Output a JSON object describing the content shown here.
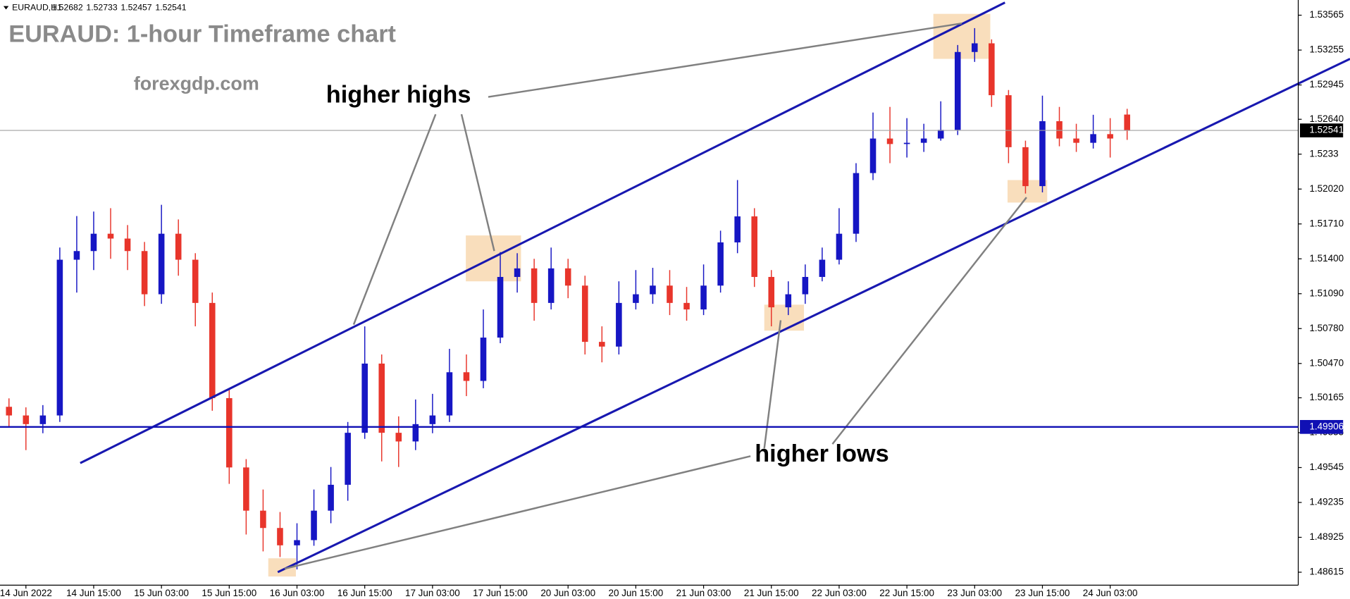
{
  "chart_data": {
    "type": "candlestick",
    "symbol": "EURAUD,H1",
    "title": "EURAUD: 1-hour Timeframe chart",
    "subtitle": "forexgdp.com",
    "annotations": [
      "higher highs",
      "higher lows"
    ],
    "up_color": "#1616c4",
    "down_color": "#e8352b",
    "series": {
      "open": [
        1.50085,
        1.50008,
        1.49931,
        1.50008,
        1.51392,
        1.51469,
        1.51623,
        1.5158,
        1.51469,
        1.51085,
        1.51623,
        1.51392,
        1.51008,
        1.50162,
        1.49546,
        1.49162,
        1.49008,
        1.48854,
        1.489,
        1.49162,
        1.49392,
        1.49854,
        1.50469,
        1.49854,
        1.49777,
        1.49931,
        1.50008,
        1.50392,
        1.50315,
        1.507,
        1.51239,
        1.51315,
        1.51008,
        1.51315,
        1.51162,
        1.50662,
        1.5062,
        1.51008,
        1.51085,
        1.51162,
        1.51008,
        1.5095,
        1.51162,
        1.51546,
        1.51777,
        1.51239,
        1.50969,
        1.51085,
        1.51239,
        1.51392,
        1.51623,
        1.52162,
        1.52469,
        1.5242,
        1.52431,
        1.52469,
        1.52546,
        1.53238,
        1.53315,
        1.52854,
        1.52392,
        1.52046,
        1.52623,
        1.52469,
        1.52431,
        1.52508,
        1.52682
      ],
      "high": [
        1.5016,
        1.5008,
        1.501,
        1.515,
        1.5178,
        1.5182,
        1.5185,
        1.517,
        1.5155,
        1.5188,
        1.5175,
        1.5145,
        1.511,
        1.5025,
        1.4962,
        1.4935,
        1.4915,
        1.4905,
        1.4935,
        1.4955,
        1.4995,
        1.508,
        1.5055,
        1.5,
        1.5015,
        1.502,
        1.506,
        1.5055,
        1.5095,
        1.5146,
        1.5145,
        1.514,
        1.515,
        1.514,
        1.5125,
        1.508,
        1.512,
        1.513,
        1.5132,
        1.513,
        1.5115,
        1.5135,
        1.5165,
        1.521,
        1.5185,
        1.513,
        1.512,
        1.5135,
        1.515,
        1.5185,
        1.5225,
        1.527,
        1.5275,
        1.5265,
        1.526,
        1.528,
        1.533,
        1.5345,
        1.5335,
        1.529,
        1.5245,
        1.5285,
        1.5275,
        1.526,
        1.5268,
        1.5265,
        1.52733
      ],
      "low": [
        1.499,
        1.497,
        1.4985,
        1.4995,
        1.511,
        1.513,
        1.514,
        1.513,
        1.5098,
        1.51,
        1.5125,
        1.508,
        1.5005,
        1.494,
        1.4895,
        1.488,
        1.4875,
        1.4864,
        1.4885,
        1.4905,
        1.4925,
        1.498,
        1.496,
        1.4955,
        1.497,
        1.4985,
        1.4995,
        1.5018,
        1.5025,
        1.5065,
        1.511,
        1.5085,
        1.5095,
        1.5105,
        1.5055,
        1.5048,
        1.5055,
        1.5095,
        1.51,
        1.509,
        1.5085,
        1.509,
        1.511,
        1.5145,
        1.5115,
        1.508,
        1.509,
        1.51,
        1.512,
        1.5135,
        1.5155,
        1.521,
        1.5225,
        1.523,
        1.5235,
        1.5245,
        1.525,
        1.5315,
        1.5275,
        1.5225,
        1.5198,
        1.5199,
        1.524,
        1.5235,
        1.5238,
        1.523,
        1.52457
      ],
      "close": [
        1.50008,
        1.49931,
        1.50008,
        1.51392,
        1.51469,
        1.51623,
        1.5158,
        1.51469,
        1.51085,
        1.51623,
        1.51392,
        1.51008,
        1.50162,
        1.49546,
        1.49162,
        1.49008,
        1.48854,
        1.489,
        1.49162,
        1.49392,
        1.49854,
        1.50469,
        1.49854,
        1.49777,
        1.49931,
        1.50008,
        1.50392,
        1.50315,
        1.507,
        1.51239,
        1.51315,
        1.51008,
        1.51315,
        1.51162,
        1.50662,
        1.5062,
        1.51008,
        1.51085,
        1.51162,
        1.51008,
        1.5095,
        1.51162,
        1.51546,
        1.51777,
        1.51239,
        1.50969,
        1.51085,
        1.51239,
        1.51392,
        1.51623,
        1.52162,
        1.52469,
        1.5242,
        1.52431,
        1.52469,
        1.52546,
        1.53238,
        1.53315,
        1.52854,
        1.52392,
        1.52046,
        1.52623,
        1.52469,
        1.52431,
        1.52508,
        1.52469,
        1.52541
      ]
    },
    "current_price": 1.52541,
    "horizontal_line": {
      "value": 1.49906,
      "color": "#1010b4"
    },
    "ylim": [
      1.485,
      1.537
    ],
    "yticks": [
      1.53565,
      1.53255,
      1.52945,
      {
        "value": 1.5264,
        "label": "1.52640"
      },
      1.5233,
      {
        "value": 1.5202,
        "label": "1.52020"
      },
      {
        "value": 1.5171,
        "label": "1.51710"
      },
      {
        "value": 1.514,
        "label": "1.51400"
      },
      {
        "value": 1.5109,
        "label": "1.51090"
      },
      {
        "value": 1.5078,
        "label": "1.50780"
      },
      {
        "value": 1.5047,
        "label": "1.50470"
      },
      1.50165,
      1.49855,
      1.49545,
      1.49235,
      1.48925,
      1.48615
    ],
    "xlim": [
      -0.53,
      76.1
    ],
    "xticks": [
      {
        "value": 1,
        "label": "14 Jun 2022"
      },
      {
        "value": 5,
        "label": "14 Jun 15:00"
      },
      {
        "value": 9,
        "label": "15 Jun 03:00"
      },
      {
        "value": 13,
        "label": "15 Jun 15:00"
      },
      {
        "value": 17,
        "label": "16 Jun 03:00"
      },
      {
        "value": 21,
        "label": "16 Jun 15:00"
      },
      {
        "value": 25,
        "label": "17 Jun 03:00"
      },
      {
        "value": 29,
        "label": "17 Jun 15:00"
      },
      {
        "value": 33,
        "label": "20 Jun 03:00"
      },
      {
        "value": 37,
        "label": "20 Jun 15:00"
      },
      {
        "value": 41,
        "label": "21 Jun 03:00"
      },
      {
        "value": 45,
        "label": "21 Jun 15:00"
      },
      {
        "value": 49,
        "label": "22 Jun 03:00"
      },
      {
        "value": 53,
        "label": "22 Jun 15:00"
      },
      {
        "value": 57,
        "label": "23 Jun 03:00"
      },
      {
        "value": 61,
        "label": "23 Jun 15:00"
      },
      {
        "value": 65,
        "label": "24 Jun 03:00"
      }
    ]
  }
}
